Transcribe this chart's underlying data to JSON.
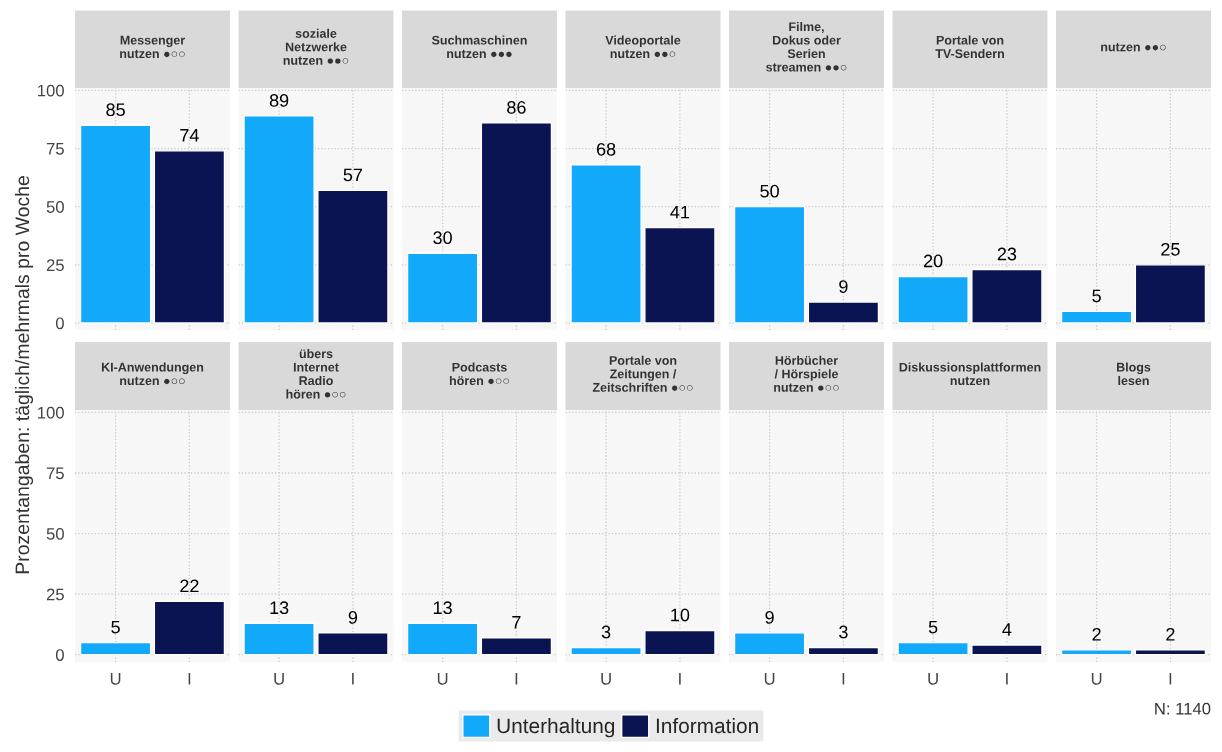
{
  "chart_data": [
    {
      "type": "bar",
      "title": "Messenger\nnutzen ●○○",
      "ylabel": "Prozentangaben: täglich/mehrmals pro Woche",
      "categories": [
        "U",
        "I"
      ],
      "series": [
        {
          "name": "Unterhaltung",
          "color": "#13a9fb",
          "values": [
            85,
            null
          ]
        },
        {
          "name": "Information",
          "color": "#0b1452",
          "values": [
            null,
            74
          ]
        }
      ],
      "data_labels": true,
      "ylim": [
        -3,
        101
      ],
      "yticks": [
        0,
        25,
        50,
        75,
        100
      ],
      "grid": true,
      "tick_labels": "y",
      "legend": "bottom"
    },
    {
      "type": "bar",
      "title": "soziale\nNetzwerke\nnutzen ●●○",
      "categories": [
        "U",
        "I"
      ],
      "series": [
        {
          "name": "Unterhaltung",
          "color": "#13a9fb",
          "values": [
            89,
            null
          ]
        },
        {
          "name": "Information",
          "color": "#0b1452",
          "values": [
            null,
            57
          ]
        }
      ],
      "data_labels": true,
      "ylim": [
        -3,
        101
      ],
      "yticks": [
        0,
        25,
        50,
        75,
        100
      ],
      "grid": true,
      "tick_labels": false
    },
    {
      "type": "bar",
      "title": "Suchmaschinen\nnutzen ●●●",
      "categories": [
        "U",
        "I"
      ],
      "series": [
        {
          "name": "Unterhaltung",
          "color": "#13a9fb",
          "values": [
            30,
            null
          ]
        },
        {
          "name": "Information",
          "color": "#0b1452",
          "values": [
            null,
            86
          ]
        }
      ],
      "data_labels": true,
      "ylim": [
        -3,
        101
      ],
      "yticks": [
        0,
        25,
        50,
        75,
        100
      ],
      "grid": true,
      "tick_labels": false
    },
    {
      "type": "bar",
      "title": "Videoportale\nnutzen ●●○",
      "categories": [
        "U",
        "I"
      ],
      "series": [
        {
          "name": "Unterhaltung",
          "color": "#13a9fb",
          "values": [
            68,
            null
          ]
        },
        {
          "name": "Information",
          "color": "#0b1452",
          "values": [
            null,
            41
          ]
        }
      ],
      "data_labels": true,
      "ylim": [
        -3,
        101
      ],
      "yticks": [
        0,
        25,
        50,
        75,
        100
      ],
      "grid": true,
      "tick_labels": false
    },
    {
      "type": "bar",
      "title": "Filme,\nDokus oder\nSerien\nstreamen ●●○",
      "categories": [
        "U",
        "I"
      ],
      "series": [
        {
          "name": "Unterhaltung",
          "color": "#13a9fb",
          "values": [
            50,
            null
          ]
        },
        {
          "name": "Information",
          "color": "#0b1452",
          "values": [
            null,
            9
          ]
        }
      ],
      "data_labels": true,
      "ylim": [
        -3,
        101
      ],
      "yticks": [
        0,
        25,
        50,
        75,
        100
      ],
      "grid": true,
      "tick_labels": false
    },
    {
      "type": "bar",
      "title": "Portale von\nTV-Sendern",
      "categories": [
        "U",
        "I"
      ],
      "series": [
        {
          "name": "Unterhaltung",
          "color": "#13a9fb",
          "values": [
            20,
            null
          ]
        },
        {
          "name": "Information",
          "color": "#0b1452",
          "values": [
            null,
            23
          ]
        }
      ],
      "data_labels": true,
      "ylim": [
        -3,
        101
      ],
      "yticks": [
        0,
        25,
        50,
        75,
        100
      ],
      "grid": true,
      "tick_labels": false
    },
    {
      "type": "bar",
      "title": "nutzen ●●○",
      "categories": [
        "U",
        "I"
      ],
      "series": [
        {
          "name": "Unterhaltung",
          "color": "#13a9fb",
          "values": [
            5,
            null
          ]
        },
        {
          "name": "Information",
          "color": "#0b1452",
          "values": [
            null,
            25
          ]
        }
      ],
      "data_labels": true,
      "ylim": [
        -3,
        101
      ],
      "yticks": [
        0,
        25,
        50,
        75,
        100
      ],
      "grid": true,
      "tick_labels": false
    },
    {
      "type": "bar",
      "title": "KI-Anwendungen\nnutzen ●○○",
      "categories": [
        "U",
        "I"
      ],
      "series": [
        {
          "name": "Unterhaltung",
          "color": "#13a9fb",
          "values": [
            5,
            null
          ]
        },
        {
          "name": "Information",
          "color": "#0b1452",
          "values": [
            null,
            22
          ]
        }
      ],
      "data_labels": true,
      "ylim": [
        -3,
        101
      ],
      "yticks": [
        0,
        25,
        50,
        75,
        100
      ],
      "grid": true
    },
    {
      "type": "bar",
      "title": "übers\nInternet\nRadio\nhören ●○○",
      "categories": [
        "U",
        "I"
      ],
      "series": [
        {
          "name": "Unterhaltung",
          "color": "#13a9fb",
          "values": [
            13,
            null
          ]
        },
        {
          "name": "Information",
          "color": "#0b1452",
          "values": [
            null,
            9
          ]
        }
      ],
      "data_labels": true,
      "ylim": [
        -3,
        101
      ],
      "yticks": [
        0,
        25,
        50,
        75,
        100
      ],
      "grid": true,
      "tick_labels": "x"
    },
    {
      "type": "bar",
      "title": "Podcasts\nhören ●○○",
      "categories": [
        "U",
        "I"
      ],
      "series": [
        {
          "name": "Unterhaltung",
          "color": "#13a9fb",
          "values": [
            13,
            null
          ]
        },
        {
          "name": "Information",
          "color": "#0b1452",
          "values": [
            null,
            7
          ]
        }
      ],
      "data_labels": true,
      "ylim": [
        -3,
        101
      ],
      "yticks": [
        0,
        25,
        50,
        75,
        100
      ],
      "grid": true,
      "tick_labels": "x"
    },
    {
      "type": "bar",
      "title": "Portale von\nZeitungen /\nZeitschriften ●○○",
      "categories": [
        "U",
        "I"
      ],
      "series": [
        {
          "name": "Unterhaltung",
          "color": "#13a9fb",
          "values": [
            3,
            null
          ]
        },
        {
          "name": "Information",
          "color": "#0b1452",
          "values": [
            null,
            10
          ]
        }
      ],
      "data_labels": true,
      "ylim": [
        -3,
        101
      ],
      "yticks": [
        0,
        25,
        50,
        75,
        100
      ],
      "grid": true,
      "tick_labels": "x"
    },
    {
      "type": "bar",
      "title": "Hörbücher\n/ Hörspiele\nnutzen ●○○",
      "categories": [
        "U",
        "I"
      ],
      "series": [
        {
          "name": "Unterhaltung",
          "color": "#13a9fb",
          "values": [
            9,
            null
          ]
        },
        {
          "name": "Information",
          "color": "#0b1452",
          "values": [
            null,
            3
          ]
        }
      ],
      "data_labels": true,
      "ylim": [
        -3,
        101
      ],
      "yticks": [
        0,
        25,
        50,
        75,
        100
      ],
      "grid": true,
      "tick_labels": "x"
    },
    {
      "type": "bar",
      "title": "Diskussionsplattformen\nnutzen",
      "categories": [
        "U",
        "I"
      ],
      "series": [
        {
          "name": "Unterhaltung",
          "color": "#13a9fb",
          "values": [
            5,
            null
          ]
        },
        {
          "name": "Information",
          "color": "#0b1452",
          "values": [
            null,
            4
          ]
        }
      ],
      "data_labels": true,
      "ylim": [
        -3,
        101
      ],
      "yticks": [
        0,
        25,
        50,
        75,
        100
      ],
      "grid": true,
      "tick_labels": "x"
    },
    {
      "type": "bar",
      "title": "Blogs\nlesen",
      "categories": [
        "U",
        "I"
      ],
      "series": [
        {
          "name": "Unterhaltung",
          "color": "#13a9fb",
          "values": [
            2,
            null
          ]
        },
        {
          "name": "Information",
          "color": "#0b1452",
          "values": [
            null,
            2
          ]
        }
      ],
      "data_labels": true,
      "ylim": [
        -3,
        101
      ],
      "yticks": [
        0,
        25,
        50,
        75,
        100
      ],
      "grid": true,
      "tick_labels": "x",
      "annotations": [
        "N: 1140"
      ]
    }
  ]
}
